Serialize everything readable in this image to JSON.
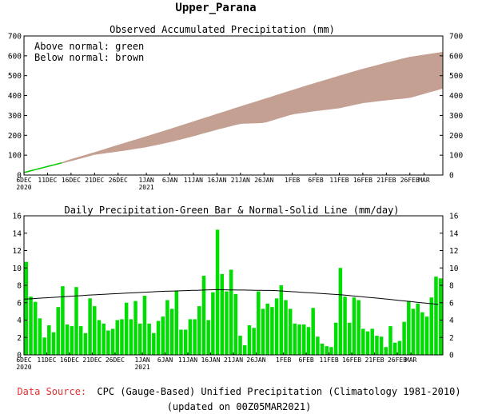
{
  "title": "Upper_Parana",
  "chart_data": [
    {
      "type": "area",
      "title": "Observed Accumulated Precipitation (mm)",
      "annotations": [
        "Above normal: green",
        "Below normal: brown"
      ],
      "colors": {
        "above": "#00cc00",
        "below": "#c4a093"
      },
      "ylim": [
        0,
        700
      ],
      "yticks": [
        0,
        100,
        200,
        300,
        400,
        500,
        600,
        700
      ],
      "xlim": [
        0,
        89
      ],
      "xticks": [
        {
          "day": 0,
          "label": "6DEC",
          "label2": "2020"
        },
        {
          "day": 5,
          "label": "11DEC"
        },
        {
          "day": 10,
          "label": "16DEC"
        },
        {
          "day": 15,
          "label": "21DEC"
        },
        {
          "day": 20,
          "label": "26DEC"
        },
        {
          "day": 26,
          "label": "1JAN",
          "label2": "2021"
        },
        {
          "day": 31,
          "label": "6JAN"
        },
        {
          "day": 36,
          "label": "11JAN"
        },
        {
          "day": 41,
          "label": "16JAN"
        },
        {
          "day": 46,
          "label": "21JAN"
        },
        {
          "day": 51,
          "label": "26JAN"
        },
        {
          "day": 57,
          "label": "1FEB"
        },
        {
          "day": 62,
          "label": "6FEB"
        },
        {
          "day": 67,
          "label": "11FEB"
        },
        {
          "day": 72,
          "label": "16FEB"
        },
        {
          "day": 77,
          "label": "21FEB"
        },
        {
          "day": 82,
          "label": "26FEB"
        },
        {
          "day": 85,
          "label": "MAR"
        }
      ],
      "series": [
        {
          "name": "Observed",
          "x": [
            0,
            5,
            10,
            15,
            20,
            26,
            31,
            36,
            41,
            46,
            51,
            57,
            62,
            67,
            72,
            77,
            82,
            89
          ],
          "values": [
            10,
            40,
            70,
            102,
            118,
            140,
            165,
            195,
            228,
            258,
            262,
            305,
            322,
            336,
            362,
            376,
            388,
            435
          ]
        },
        {
          "name": "Normal",
          "x": [
            0,
            5,
            10,
            15,
            20,
            26,
            31,
            36,
            41,
            46,
            51,
            57,
            62,
            67,
            72,
            77,
            82,
            89
          ],
          "values": [
            8,
            40,
            80,
            115,
            152,
            195,
            232,
            270,
            308,
            346,
            383,
            428,
            465,
            500,
            535,
            566,
            595,
            620
          ]
        }
      ]
    },
    {
      "type": "bar",
      "title": "Daily Precipitation-Green Bar & Normal-Solid Line (mm/day)",
      "colors": {
        "bar": "#00dd00",
        "line": "#000000"
      },
      "ylim": [
        0,
        16
      ],
      "yticks": [
        0,
        2,
        4,
        6,
        8,
        10,
        12,
        14,
        16
      ],
      "values": [
        10.7,
        6.7,
        6.1,
        4.2,
        2.0,
        3.4,
        2.6,
        5.5,
        7.9,
        3.5,
        3.3,
        7.8,
        3.3,
        2.5,
        6.5,
        5.6,
        4.0,
        3.6,
        2.8,
        3.0,
        4.0,
        4.1,
        6.0,
        4.1,
        6.2,
        3.6,
        6.8,
        3.6,
        2.5,
        3.9,
        4.4,
        6.3,
        5.3,
        7.4,
        2.9,
        2.9,
        4.1,
        4.1,
        5.6,
        9.1,
        4.0,
        7.2,
        14.4,
        9.3,
        7.3,
        9.8,
        7.0,
        2.2,
        1.1,
        3.4,
        3.1,
        7.3,
        5.3,
        5.9,
        5.5,
        6.5,
        8.0,
        6.3,
        5.3,
        3.6,
        3.5,
        3.5,
        3.2,
        5.4,
        2.1,
        1.3,
        1.0,
        0.9,
        3.7,
        10.0,
        6.7,
        3.7,
        6.6,
        6.3,
        3.0,
        2.7,
        3.0,
        2.2,
        2.1,
        0.9,
        3.3,
        1.4,
        1.6,
        3.8,
        6.2,
        5.3,
        5.9,
        4.9,
        4.4,
        6.6,
        9.0,
        8.8
      ],
      "normal_line": {
        "x": [
          0,
          15,
          30,
          42,
          55,
          70,
          80,
          91
        ],
        "values": [
          6.4,
          6.9,
          7.3,
          7.5,
          7.4,
          6.9,
          6.4,
          5.8
        ]
      },
      "xticks_ref": "same as accumulated panel"
    }
  ],
  "footer": {
    "source_label": "Data Source:",
    "source_text": "CPC (Gauge-Based) Unified Precipitation (Climatology 1981-2010)",
    "updated": "(updated on 00Z05MAR2021)"
  }
}
